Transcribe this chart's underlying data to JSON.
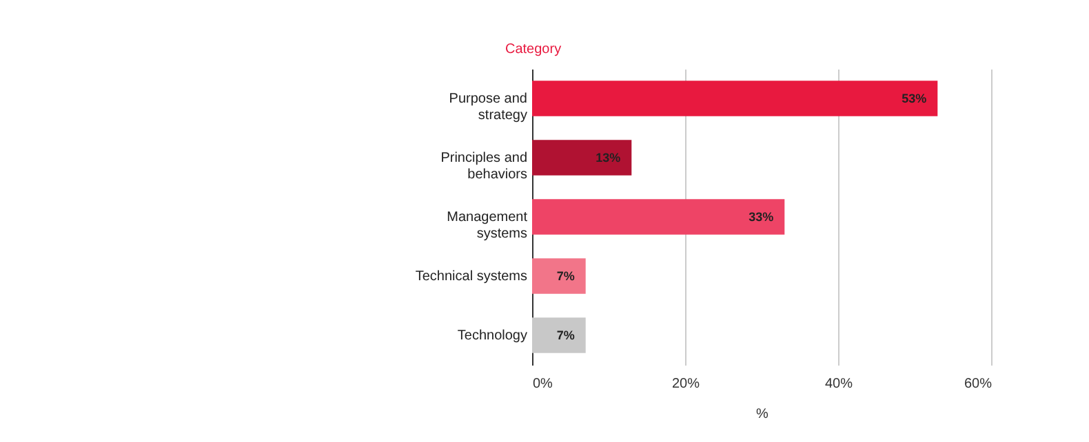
{
  "chart_data": {
    "type": "bar",
    "orientation": "horizontal",
    "ylabel": "Category",
    "xlabel": "%",
    "categories": [
      "Purpose and strategy",
      "Principles and behaviors",
      "Management systems",
      "Technical systems",
      "Technology"
    ],
    "values": [
      53,
      13,
      33,
      7,
      7
    ],
    "colors": [
      "#e8193f",
      "#b01232",
      "#ee4466",
      "#f27589",
      "#c8c8c8"
    ],
    "value_labels": [
      "53%",
      "13%",
      "33%",
      "7%",
      "7%"
    ],
    "xlim": [
      0,
      60
    ],
    "xticks": [
      {
        "value": 0,
        "label": "0%"
      },
      {
        "value": 20,
        "label": "20%"
      },
      {
        "value": 40,
        "label": "40%"
      },
      {
        "value": 60,
        "label": "60%"
      }
    ],
    "grid": "x"
  }
}
